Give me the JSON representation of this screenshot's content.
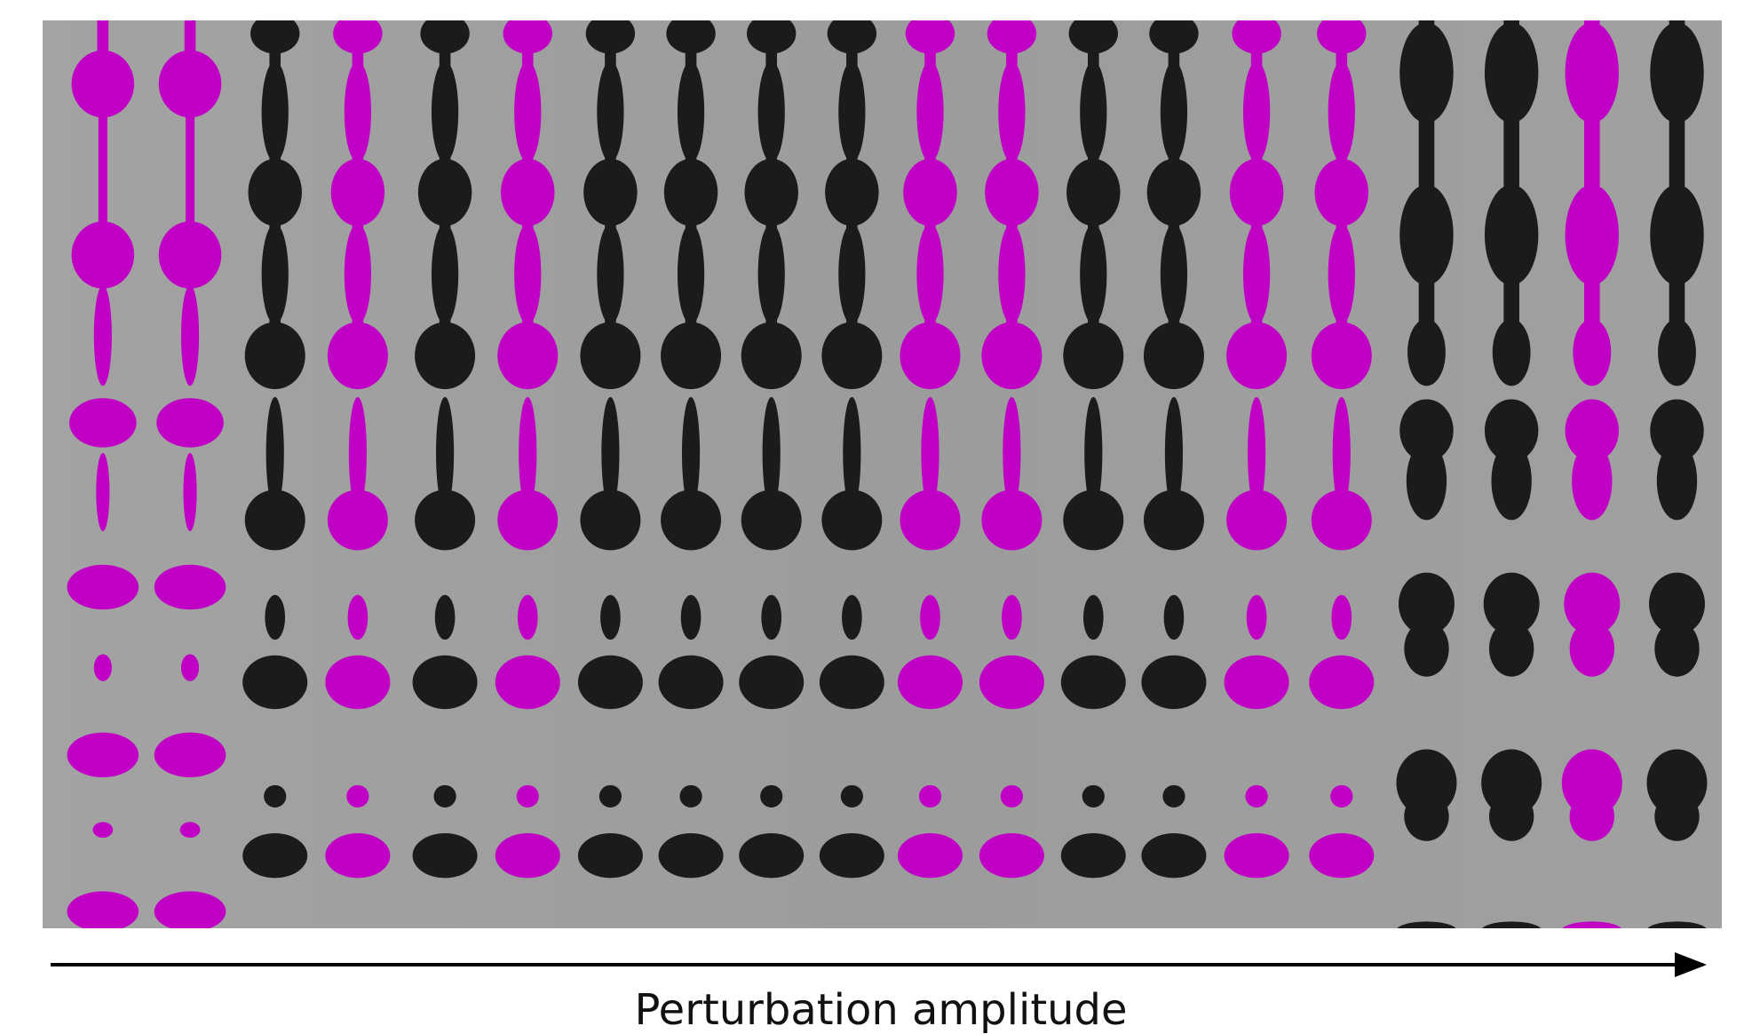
{
  "caption": "Perturbation amplitude"
}
